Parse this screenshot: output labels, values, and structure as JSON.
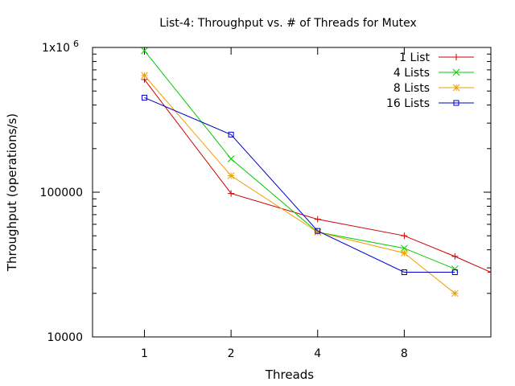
{
  "chart_data": {
    "type": "line",
    "title": "List-4: Throughput vs. # of Threads for Mutex",
    "xlabel": "Threads",
    "ylabel": "Throughput (operations/s)",
    "x_scale": "log2",
    "y_scale": "log10",
    "xlim": [
      0.66,
      16
    ],
    "ylim": [
      10000,
      1000000
    ],
    "x_ticks": [
      {
        "value": 1,
        "label": "1"
      },
      {
        "value": 2,
        "label": "2"
      },
      {
        "value": 4,
        "label": "4"
      },
      {
        "value": 8,
        "label": "8"
      }
    ],
    "y_ticks": [
      {
        "value": 10000,
        "label": "10000"
      },
      {
        "value": 100000,
        "label": "100000"
      },
      {
        "value": 1000000,
        "label": "1x10",
        "label_exp": "6"
      }
    ],
    "legend_position": "top-right",
    "series": [
      {
        "name": "1 List",
        "color": "#cc0000",
        "marker": "plus",
        "x": [
          1,
          2,
          4,
          8,
          12,
          16
        ],
        "y": [
          600000,
          98000,
          65000,
          50000,
          36000,
          28000
        ]
      },
      {
        "name": "4 Lists",
        "color": "#00cc00",
        "marker": "cross",
        "x": [
          1,
          2,
          4,
          8,
          12
        ],
        "y": [
          950000,
          170000,
          53000,
          41000,
          29500
        ]
      },
      {
        "name": "8 Lists",
        "color": "#eea000",
        "marker": "star",
        "x": [
          1,
          2,
          4,
          8,
          12
        ],
        "y": [
          640000,
          130000,
          53000,
          38000,
          20000
        ]
      },
      {
        "name": "16 Lists",
        "color": "#0000cc",
        "marker": "square",
        "x": [
          1,
          2,
          4,
          8,
          12
        ],
        "y": [
          450000,
          250000,
          54000,
          28000,
          28000
        ]
      }
    ]
  }
}
